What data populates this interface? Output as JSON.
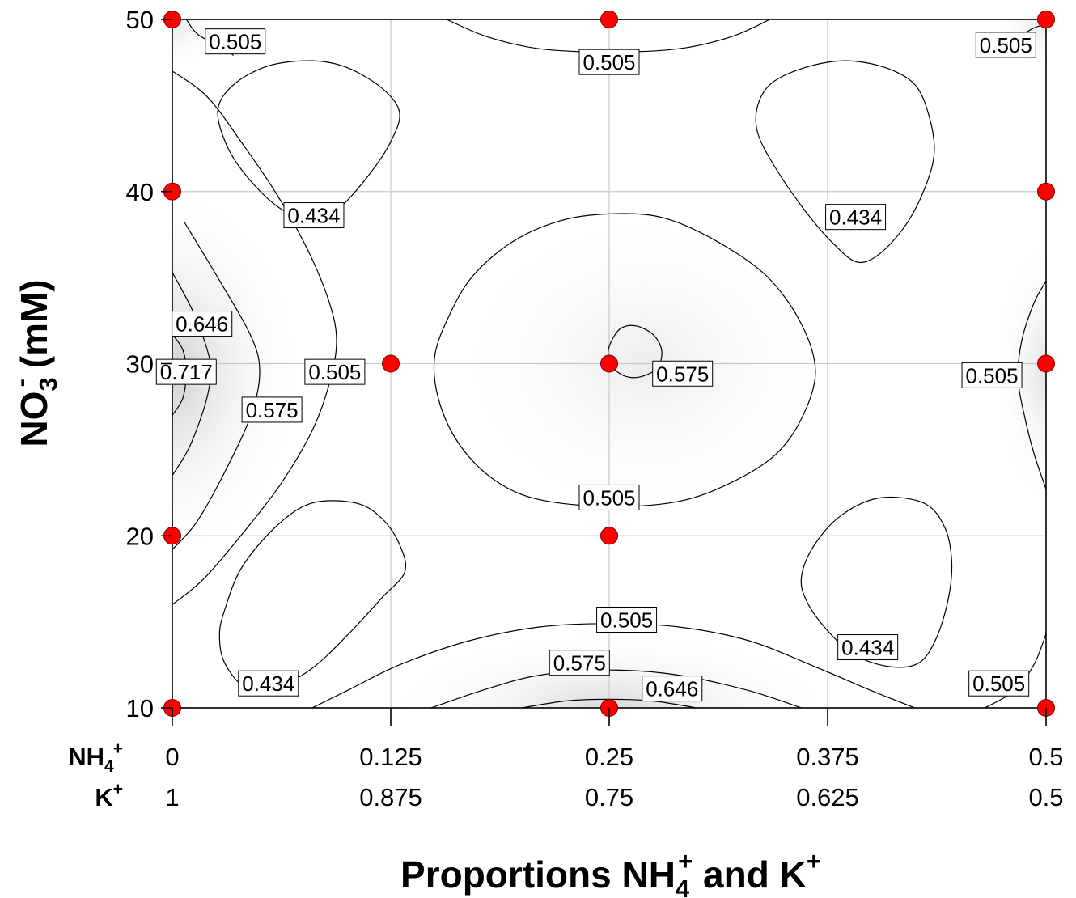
{
  "chart_data": {
    "type": "contour",
    "title": "",
    "xlabel": {
      "prefix": "Proportions NH",
      "sub": "4",
      "sup1": "+",
      "middle": " and K",
      "sup2": "+"
    },
    "ylabel": {
      "prefix": "NO",
      "sub": "3",
      "sup": "-",
      "suffix": " (mM)"
    },
    "xlim": [
      0,
      0.5
    ],
    "ylim": [
      10,
      50
    ],
    "x_ticks": [
      0,
      0.125,
      0.25,
      0.375,
      0.5
    ],
    "y_ticks": [
      10,
      20,
      30,
      40,
      50
    ],
    "y_tick_labels": [
      "10",
      "20",
      "30",
      "40",
      "50"
    ],
    "x_tick_rows": [
      {
        "label": {
          "main": "NH",
          "sub": "4",
          "sup": "+"
        },
        "values": [
          "0",
          "0.125",
          "0.25",
          "0.375",
          "0.5"
        ]
      },
      {
        "label": {
          "main": "K",
          "sub": "",
          "sup": "+"
        },
        "values": [
          "1",
          "0.875",
          "0.75",
          "0.625",
          "0.5"
        ]
      }
    ],
    "grid": true,
    "levels": [
      0.434,
      0.505,
      0.575,
      0.646,
      0.717
    ],
    "design_points": [
      {
        "x": 0,
        "y": 50
      },
      {
        "x": 0.25,
        "y": 50
      },
      {
        "x": 0.5,
        "y": 50
      },
      {
        "x": 0,
        "y": 40
      },
      {
        "x": 0.5,
        "y": 40
      },
      {
        "x": 0.125,
        "y": 30
      },
      {
        "x": 0.25,
        "y": 30
      },
      {
        "x": 0.5,
        "y": 30
      },
      {
        "x": 0,
        "y": 20
      },
      {
        "x": 0.25,
        "y": 20
      },
      {
        "x": 0,
        "y": 10
      },
      {
        "x": 0.25,
        "y": 10
      },
      {
        "x": 0.5,
        "y": 10
      }
    ],
    "contour_labels": [
      {
        "text": "0.505",
        "x": 0.036,
        "y": 48.7
      },
      {
        "text": "0.505",
        "x": 0.25,
        "y": 47.5
      },
      {
        "text": "0.505",
        "x": 0.477,
        "y": 48.5
      },
      {
        "text": "0.434",
        "x": 0.081,
        "y": 38.6
      },
      {
        "text": "0.434",
        "x": 0.391,
        "y": 38.5
      },
      {
        "text": "0.646",
        "x": 0.017,
        "y": 32.3
      },
      {
        "text": "0.717",
        "x": 0.008,
        "y": 29.5
      },
      {
        "text": "0.505",
        "x": 0.093,
        "y": 29.5
      },
      {
        "text": "0.575",
        "x": 0.057,
        "y": 27.3
      },
      {
        "text": "0.575",
        "x": 0.292,
        "y": 29.4
      },
      {
        "text": "0.505",
        "x": 0.469,
        "y": 29.3
      },
      {
        "text": "0.505",
        "x": 0.25,
        "y": 22.2
      },
      {
        "text": "0.505",
        "x": 0.26,
        "y": 15.1
      },
      {
        "text": "0.434",
        "x": 0.398,
        "y": 13.5
      },
      {
        "text": "0.575",
        "x": 0.233,
        "y": 12.6
      },
      {
        "text": "0.434",
        "x": 0.055,
        "y": 11.4
      },
      {
        "text": "0.646",
        "x": 0.286,
        "y": 11.1
      },
      {
        "text": "0.505",
        "x": 0.473,
        "y": 11.4
      }
    ],
    "contours": [
      {
        "level": 0.434,
        "closed": true,
        "points": [
          [
            0.026,
            44.7
          ],
          [
            0.035,
            46.2
          ],
          [
            0.055,
            47.3
          ],
          [
            0.08,
            47.6
          ],
          [
            0.1,
            47.2
          ],
          [
            0.12,
            46.0
          ],
          [
            0.13,
            44.6
          ],
          [
            0.125,
            42.9
          ],
          [
            0.112,
            40.9
          ],
          [
            0.094,
            38.9
          ],
          [
            0.08,
            38.3
          ],
          [
            0.062,
            39.0
          ],
          [
            0.045,
            40.6
          ],
          [
            0.032,
            42.5
          ]
        ]
      },
      {
        "level": 0.434,
        "closed": true,
        "points": [
          [
            0.335,
            45.0
          ],
          [
            0.343,
            46.3
          ],
          [
            0.362,
            47.2
          ],
          [
            0.385,
            47.6
          ],
          [
            0.408,
            47.2
          ],
          [
            0.425,
            46.2
          ],
          [
            0.433,
            44.4
          ],
          [
            0.436,
            42.3
          ],
          [
            0.431,
            40.3
          ],
          [
            0.42,
            38.1
          ],
          [
            0.405,
            36.4
          ],
          [
            0.392,
            35.9
          ],
          [
            0.378,
            37.0
          ],
          [
            0.362,
            38.9
          ],
          [
            0.345,
            41.4
          ],
          [
            0.335,
            43.4
          ]
        ]
      },
      {
        "level": 0.434,
        "closed": true,
        "points": [
          [
            0.03,
            15.7
          ],
          [
            0.04,
            18.2
          ],
          [
            0.06,
            20.6
          ],
          [
            0.08,
            21.9
          ],
          [
            0.105,
            21.9
          ],
          [
            0.12,
            21.0
          ],
          [
            0.13,
            19.5
          ],
          [
            0.133,
            17.9
          ],
          [
            0.12,
            16.4
          ],
          [
            0.1,
            14.2
          ],
          [
            0.08,
            12.3
          ],
          [
            0.06,
            11.2
          ],
          [
            0.042,
            11.2
          ],
          [
            0.03,
            12.6
          ],
          [
            0.027,
            14.2
          ]
        ]
      },
      {
        "level": 0.434,
        "closed": true,
        "points": [
          [
            0.36,
            17.6
          ],
          [
            0.367,
            19.4
          ],
          [
            0.383,
            21.2
          ],
          [
            0.405,
            22.2
          ],
          [
            0.43,
            21.9
          ],
          [
            0.442,
            20.5
          ],
          [
            0.446,
            18.5
          ],
          [
            0.444,
            16.3
          ],
          [
            0.437,
            14.0
          ],
          [
            0.427,
            12.6
          ],
          [
            0.41,
            12.4
          ],
          [
            0.39,
            13.1
          ],
          [
            0.374,
            14.6
          ],
          [
            0.363,
            16.2
          ]
        ]
      },
      {
        "level": 0.505,
        "closed": false,
        "points": [
          [
            0.008,
            50
          ],
          [
            0.015,
            49.1
          ],
          [
            0.03,
            48.3
          ],
          [
            0.035,
            47.9
          ]
        ]
      },
      {
        "level": 0.505,
        "closed": false,
        "points": [
          [
            0.157,
            50
          ],
          [
            0.18,
            49.0
          ],
          [
            0.21,
            48.3
          ],
          [
            0.25,
            48.1
          ],
          [
            0.29,
            48.3
          ],
          [
            0.32,
            49.0
          ],
          [
            0.342,
            50
          ]
        ]
      },
      {
        "level": 0.505,
        "closed": false,
        "points": [
          [
            0.471,
            47.9
          ],
          [
            0.482,
            48.8
          ],
          [
            0.493,
            49.5
          ],
          [
            0.5,
            49.7
          ]
        ]
      },
      {
        "level": 0.505,
        "closed": false,
        "points": [
          [
            0,
            47.0
          ],
          [
            0.02,
            45.5
          ],
          [
            0.04,
            42.8
          ],
          [
            0.06,
            39.8
          ],
          [
            0.078,
            36.5
          ],
          [
            0.09,
            33.5
          ],
          [
            0.094,
            31.3
          ],
          [
            0.09,
            28.9
          ],
          [
            0.08,
            26.1
          ],
          [
            0.062,
            23.0
          ],
          [
            0.04,
            20.1
          ],
          [
            0.018,
            17.5
          ],
          [
            0,
            16.0
          ]
        ]
      },
      {
        "level": 0.505,
        "closed": true,
        "points": [
          [
            0.25,
            38.7
          ],
          [
            0.28,
            38.5
          ],
          [
            0.31,
            37.2
          ],
          [
            0.34,
            35.1
          ],
          [
            0.36,
            32.3
          ],
          [
            0.368,
            29.5
          ],
          [
            0.36,
            26.8
          ],
          [
            0.345,
            24.7
          ],
          [
            0.32,
            23.1
          ],
          [
            0.29,
            22.0
          ],
          [
            0.25,
            21.7
          ],
          [
            0.21,
            22.1
          ],
          [
            0.185,
            23.2
          ],
          [
            0.165,
            25.2
          ],
          [
            0.153,
            27.7
          ],
          [
            0.15,
            30.3
          ],
          [
            0.158,
            32.7
          ],
          [
            0.172,
            35.1
          ],
          [
            0.195,
            37.1
          ],
          [
            0.222,
            38.3
          ]
        ]
      },
      {
        "level": 0.505,
        "closed": false,
        "points": [
          [
            0.5,
            34.8
          ],
          [
            0.493,
            33.5
          ],
          [
            0.486,
            31.3
          ],
          [
            0.484,
            29.1
          ],
          [
            0.488,
            26.8
          ],
          [
            0.493,
            24.8
          ],
          [
            0.5,
            22.7
          ]
        ]
      },
      {
        "level": 0.505,
        "closed": false,
        "points": [
          [
            0,
            10.0
          ],
          [
            0.01,
            10.0
          ]
        ]
      },
      {
        "level": 0.505,
        "closed": false,
        "points": [
          [
            0.08,
            10
          ],
          [
            0.1,
            11.0
          ],
          [
            0.13,
            12.5
          ],
          [
            0.17,
            13.9
          ],
          [
            0.21,
            14.7
          ],
          [
            0.25,
            14.9
          ],
          [
            0.29,
            14.7
          ],
          [
            0.33,
            13.9
          ],
          [
            0.37,
            12.3
          ],
          [
            0.4,
            11.0
          ],
          [
            0.425,
            10
          ]
        ]
      },
      {
        "level": 0.505,
        "closed": false,
        "points": [
          [
            0.465,
            10.0
          ],
          [
            0.482,
            11.0
          ],
          [
            0.493,
            12.5
          ],
          [
            0.5,
            14.3
          ]
        ]
      },
      {
        "level": 0.505,
        "closed": false,
        "points": [
          [
            0.5,
            17.0
          ],
          [
            0.5,
            17.0
          ]
        ]
      },
      {
        "level": 0.575,
        "closed": false,
        "points": [
          [
            0.007,
            38.2
          ],
          [
            0.026,
            35.0
          ],
          [
            0.045,
            31.6
          ],
          [
            0.05,
            29.5
          ],
          [
            0.045,
            27.0
          ],
          [
            0.03,
            23.7
          ],
          [
            0.014,
            20.8
          ],
          [
            0,
            19.2
          ]
        ]
      },
      {
        "level": 0.575,
        "closed": true,
        "points": [
          [
            0.25,
            31.0
          ],
          [
            0.256,
            32.0
          ],
          [
            0.265,
            32.2
          ],
          [
            0.275,
            31.7
          ],
          [
            0.28,
            30.8
          ],
          [
            0.278,
            29.8
          ],
          [
            0.27,
            29.3
          ],
          [
            0.262,
            29.2
          ],
          [
            0.255,
            29.5
          ],
          [
            0.25,
            30.2
          ]
        ]
      },
      {
        "level": 0.575,
        "closed": false,
        "points": [
          [
            0.148,
            10
          ],
          [
            0.18,
            11.1
          ],
          [
            0.21,
            11.9
          ],
          [
            0.25,
            12.2
          ],
          [
            0.29,
            11.9
          ],
          [
            0.33,
            11.0
          ],
          [
            0.36,
            10
          ]
        ]
      },
      {
        "level": 0.646,
        "closed": false,
        "points": [
          [
            0,
            35.3
          ],
          [
            0.012,
            33.0
          ],
          [
            0.02,
            30.8
          ],
          [
            0.022,
            29.5
          ],
          [
            0.019,
            27.7
          ],
          [
            0.01,
            25.2
          ],
          [
            0,
            23.5
          ]
        ]
      },
      {
        "level": 0.646,
        "closed": false,
        "points": [
          [
            0.2,
            10
          ],
          [
            0.225,
            10.4
          ],
          [
            0.25,
            10.5
          ],
          [
            0.275,
            10.4
          ],
          [
            0.3,
            10
          ]
        ]
      },
      {
        "level": 0.717,
        "closed": false,
        "points": [
          [
            0,
            31.7
          ],
          [
            0.006,
            30.8
          ],
          [
            0.008,
            29.5
          ],
          [
            0.006,
            28.0
          ],
          [
            0,
            27.0
          ]
        ]
      }
    ]
  }
}
